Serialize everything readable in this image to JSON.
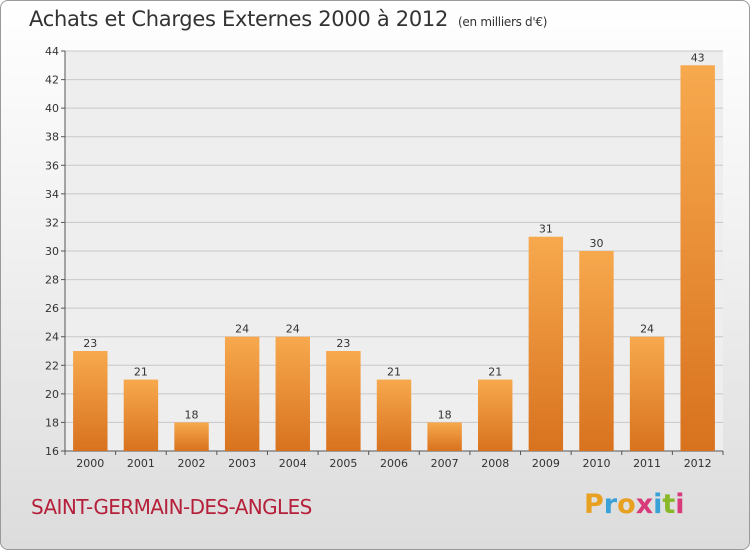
{
  "title": "Achats et Charges Externes 2000 à 2012",
  "unit": "(en milliers d'€)",
  "location": "SAINT-GERMAIN-DES-ANGLES",
  "logo": {
    "letters": [
      "P",
      "r",
      "o",
      "x",
      "i",
      "t",
      "i"
    ],
    "colors": [
      "#e8a020",
      "#3aa0d8",
      "#e8a020",
      "#d83a7a",
      "#3aa0d8",
      "#88b828",
      "#d83a7a"
    ]
  },
  "colors": {
    "bar_top": "#f7a94e",
    "bar_bottom": "#d8721e",
    "accent": "#b5203a"
  },
  "chart_data": {
    "type": "bar",
    "title": "Achats et Charges Externes 2000 à 2012",
    "subtitle": "(en milliers d'€)",
    "categories": [
      "2000",
      "2001",
      "2002",
      "2003",
      "2004",
      "2005",
      "2006",
      "2007",
      "2008",
      "2009",
      "2010",
      "2011",
      "2012"
    ],
    "values": [
      23,
      21,
      18,
      24,
      24,
      23,
      21,
      18,
      21,
      31,
      30,
      24,
      43
    ],
    "ylim": [
      16,
      44
    ],
    "yticks": [
      16,
      18,
      20,
      22,
      24,
      26,
      28,
      30,
      32,
      34,
      36,
      38,
      40,
      42,
      44
    ],
    "grid": true,
    "data_labels": true
  }
}
